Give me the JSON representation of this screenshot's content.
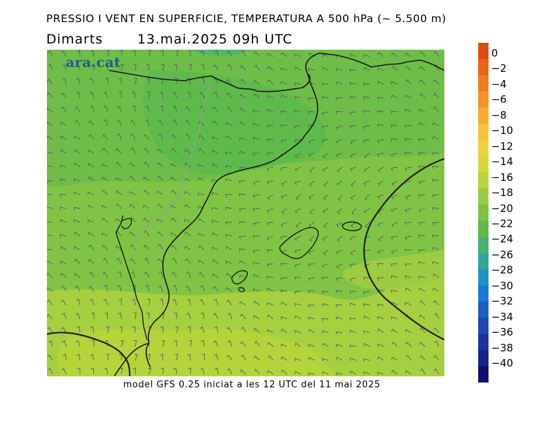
{
  "header": {
    "title": "PRESSIO I VENT EN SUPERFICIE, TEMPERATURA A 500 hPa (~ 5.500 m)",
    "day": "Dimarts",
    "datetime": "13.mai.2025 09h UTC"
  },
  "logo": {
    "text": "ara.cat"
  },
  "footer": {
    "model_info": "model GFS 0.25 iniciat a les 12 UTC del 11 mai 2025"
  },
  "colorbar": {
    "labels": [
      "0",
      "−2",
      "−4",
      "−6",
      "−8",
      "−10",
      "−12",
      "−14",
      "−16",
      "−18",
      "−20",
      "−22",
      "−24",
      "−26",
      "−28",
      "−30",
      "−32",
      "−34",
      "−36",
      "−38",
      "−40"
    ],
    "colors": [
      "#e04a14",
      "#ec6418",
      "#f27a1e",
      "#f59428",
      "#f7ac30",
      "#f6c238",
      "#ecd33c",
      "#d7d63c",
      "#bad33e",
      "#9acb44",
      "#7ec244",
      "#60b94c",
      "#48b070",
      "#30a69a",
      "#1e92c4",
      "#1a78dc",
      "#1c5ec4",
      "#1c48b0",
      "#1a349c",
      "#172288",
      "#140c70"
    ]
  },
  "map": {
    "field_colors": {
      "warm": "#acd23e",
      "mid": "#7cc447",
      "cool": "#62bd4d",
      "trough": "#4eb468"
    },
    "coastline_color": "#111111",
    "border_color": "#9c9c9c",
    "barb_color": "#555555",
    "isobar_color": "#222222"
  }
}
